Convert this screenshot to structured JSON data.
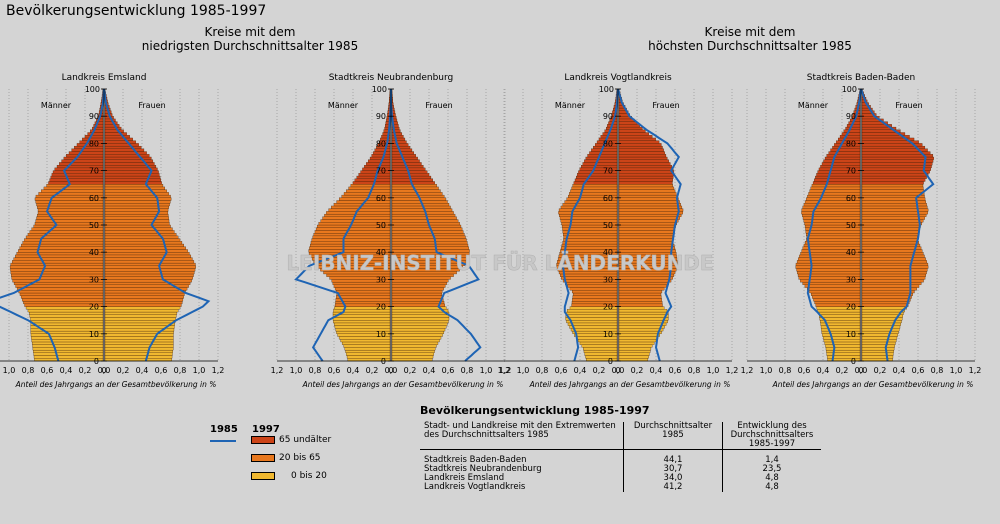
{
  "title": "Bevölkerungsentwicklung 1985-1997",
  "group_left": {
    "line1": "Kreise mit dem",
    "line2": "niedrigsten Durchschnittsalter 1985"
  },
  "group_right": {
    "line1": "Kreise mit dem",
    "line2": "höchsten Durchschnittsalter 1985"
  },
  "watermark": "LEIBNIZ-INSTITUT FÜR LÄNDERKUNDE",
  "legend": {
    "y1985": "1985",
    "y1997": "1997",
    "items": [
      "65 undälter",
      "20 bis  65",
      "0 bis  20"
    ]
  },
  "colors": {
    "old": "#cc4418",
    "mid": "#e8781e",
    "young": "#f0b830",
    "line": "#1e64b4"
  },
  "chart_data": [
    {
      "type": "population-pyramid",
      "title": "Landkreis Emsland",
      "left_label": "Männer",
      "right_label": "Frauen",
      "xlabel": "Anteil des Jahrgangs an der Gesamtbevölkerung in %",
      "x_ticks_left": [
        "1,2",
        "1,0",
        "0,8",
        "0,6",
        "0,4",
        "0,2",
        "0"
      ],
      "x_ticks_right": [
        "0,0",
        "0,2",
        "0,4",
        "0,6",
        "0,8",
        "1,0",
        "1,2"
      ],
      "y_ticks": [
        0,
        10,
        20,
        30,
        40,
        50,
        60,
        70,
        80,
        90,
        100
      ],
      "xlim": [
        0,
        1.2
      ],
      "ylim": [
        0,
        100
      ],
      "profile_1997": {
        "ages": [
          0,
          5,
          10,
          15,
          18,
          20,
          25,
          30,
          35,
          40,
          45,
          50,
          55,
          60,
          65,
          70,
          75,
          80,
          85,
          90,
          95,
          100
        ],
        "men": [
          0.72,
          0.74,
          0.76,
          0.76,
          0.78,
          0.82,
          0.88,
          0.96,
          0.98,
          0.9,
          0.82,
          0.72,
          0.68,
          0.72,
          0.58,
          0.52,
          0.4,
          0.26,
          0.12,
          0.05,
          0.02,
          0
        ],
        "women": [
          0.7,
          0.72,
          0.72,
          0.74,
          0.76,
          0.8,
          0.84,
          0.92,
          0.96,
          0.88,
          0.78,
          0.68,
          0.66,
          0.7,
          0.6,
          0.56,
          0.48,
          0.34,
          0.18,
          0.08,
          0.03,
          0
        ]
      },
      "line_1985": {
        "ages": [
          0,
          5,
          10,
          15,
          20,
          22,
          25,
          30,
          35,
          40,
          45,
          50,
          55,
          60,
          65,
          70,
          75,
          80,
          85,
          90,
          95,
          100
        ],
        "men": [
          0.48,
          0.52,
          0.58,
          0.8,
          1.1,
          1.2,
          0.95,
          0.68,
          0.62,
          0.7,
          0.66,
          0.5,
          0.6,
          0.55,
          0.36,
          0.42,
          0.28,
          0.18,
          0.1,
          0.04,
          0.01,
          0
        ],
        "women": [
          0.44,
          0.48,
          0.56,
          0.76,
          1.04,
          1.1,
          0.86,
          0.62,
          0.58,
          0.66,
          0.62,
          0.5,
          0.58,
          0.56,
          0.44,
          0.5,
          0.38,
          0.26,
          0.14,
          0.06,
          0.02,
          0
        ]
      }
    },
    {
      "type": "population-pyramid",
      "title": "Stadtkreis Neubrandenburg",
      "left_label": "Männer",
      "right_label": "Frauen",
      "xlabel": "Anteil des Jahrgangs an der Gesamtbevölkerung in %",
      "x_ticks_left": [
        "1,2",
        "1,0",
        "0,8",
        "0,6",
        "0,4",
        "0,2",
        "0"
      ],
      "x_ticks_right": [
        "0,0",
        "0,2",
        "0,4",
        "0,6",
        "0,8",
        "1,0",
        "1,2"
      ],
      "y_ticks": [
        0,
        10,
        20,
        30,
        40,
        50,
        60,
        70,
        80,
        90,
        100
      ],
      "xlim": [
        0,
        1.2
      ],
      "ylim": [
        0,
        100
      ],
      "profile_1997": {
        "ages": [
          0,
          5,
          10,
          15,
          18,
          20,
          25,
          30,
          35,
          40,
          45,
          50,
          55,
          60,
          65,
          70,
          75,
          80,
          85,
          90,
          95,
          100
        ],
        "men": [
          0.44,
          0.48,
          0.56,
          0.6,
          0.6,
          0.58,
          0.56,
          0.62,
          0.78,
          0.86,
          0.82,
          0.76,
          0.66,
          0.52,
          0.4,
          0.3,
          0.2,
          0.12,
          0.06,
          0.03,
          0.01,
          0
        ],
        "women": [
          0.42,
          0.46,
          0.54,
          0.6,
          0.6,
          0.56,
          0.52,
          0.6,
          0.76,
          0.82,
          0.78,
          0.72,
          0.64,
          0.56,
          0.46,
          0.36,
          0.26,
          0.16,
          0.08,
          0.04,
          0.01,
          0
        ]
      },
      "line_1985": {
        "ages": [
          0,
          5,
          10,
          15,
          18,
          20,
          25,
          30,
          35,
          40,
          45,
          50,
          55,
          60,
          65,
          70,
          75,
          80,
          85,
          90,
          95,
          100
        ],
        "men": [
          0.72,
          0.82,
          0.74,
          0.66,
          0.5,
          0.48,
          0.56,
          1.0,
          0.86,
          0.5,
          0.5,
          0.42,
          0.36,
          0.24,
          0.18,
          0.14,
          0.08,
          0.04,
          0.02,
          0.01,
          0,
          0
        ],
        "women": [
          0.78,
          0.94,
          0.84,
          0.7,
          0.56,
          0.5,
          0.56,
          0.92,
          0.82,
          0.48,
          0.46,
          0.4,
          0.36,
          0.3,
          0.22,
          0.18,
          0.12,
          0.06,
          0.03,
          0.01,
          0,
          0
        ]
      }
    },
    {
      "type": "population-pyramid",
      "title": "Landkreis Vogtlandkreis",
      "left_label": "Männer",
      "right_label": "Frauen",
      "xlabel": "Anteil des Jahrgangs an der Gesamtbevölkerung in %",
      "x_ticks_left": [
        "1,2",
        "1,0",
        "0,8",
        "0,6",
        "0,4",
        "0,2",
        "0"
      ],
      "x_ticks_right": [
        "0,0",
        "0,2",
        "0,4",
        "0,6",
        "0,8",
        "1,0",
        "1,2"
      ],
      "y_ticks": [
        0,
        10,
        20,
        30,
        40,
        50,
        60,
        70,
        80,
        90,
        100
      ],
      "xlim": [
        0,
        1.2
      ],
      "ylim": [
        0,
        100
      ],
      "profile_1997": {
        "ages": [
          0,
          5,
          10,
          15,
          18,
          20,
          25,
          30,
          35,
          40,
          45,
          50,
          55,
          60,
          65,
          70,
          75,
          80,
          85,
          90,
          95,
          100
        ],
        "men": [
          0.32,
          0.36,
          0.46,
          0.54,
          0.54,
          0.48,
          0.46,
          0.58,
          0.64,
          0.6,
          0.56,
          0.58,
          0.62,
          0.52,
          0.46,
          0.4,
          0.32,
          0.22,
          0.12,
          0.06,
          0.02,
          0
        ],
        "women": [
          0.3,
          0.34,
          0.44,
          0.52,
          0.52,
          0.46,
          0.44,
          0.56,
          0.62,
          0.6,
          0.56,
          0.6,
          0.68,
          0.62,
          0.56,
          0.58,
          0.5,
          0.44,
          0.26,
          0.12,
          0.04,
          0
        ]
      },
      "line_1985": {
        "ages": [
          0,
          5,
          10,
          15,
          18,
          20,
          25,
          30,
          35,
          40,
          45,
          50,
          55,
          60,
          65,
          70,
          75,
          80,
          85,
          90,
          95,
          100
        ],
        "men": [
          0.46,
          0.42,
          0.44,
          0.5,
          0.56,
          0.56,
          0.52,
          0.56,
          0.58,
          0.56,
          0.54,
          0.5,
          0.48,
          0.4,
          0.36,
          0.26,
          0.2,
          0.14,
          0.08,
          0.03,
          0.01,
          0
        ],
        "women": [
          0.44,
          0.4,
          0.42,
          0.48,
          0.52,
          0.56,
          0.5,
          0.54,
          0.56,
          0.56,
          0.58,
          0.6,
          0.64,
          0.62,
          0.66,
          0.56,
          0.64,
          0.52,
          0.3,
          0.12,
          0.04,
          0
        ]
      }
    },
    {
      "type": "population-pyramid",
      "title": "Stadtkreis Baden-Baden",
      "left_label": "Männer",
      "right_label": "Frauen",
      "xlabel": "Anteil des Jahrgangs an der Gesamtbevölkerung in %",
      "x_ticks_left": [
        "1,2",
        "1,0",
        "0,8",
        "0,6",
        "0,4",
        "0,2",
        "0"
      ],
      "x_ticks_right": [
        "0,0",
        "0,2",
        "0,4",
        "0,6",
        "0,8",
        "1,0",
        "1,2"
      ],
      "y_ticks": [
        0,
        10,
        20,
        30,
        40,
        50,
        60,
        70,
        80,
        90,
        100
      ],
      "xlim": [
        0,
        1.2
      ],
      "ylim": [
        0,
        100
      ],
      "profile_1997": {
        "ages": [
          0,
          5,
          10,
          15,
          18,
          20,
          25,
          30,
          35,
          40,
          45,
          50,
          55,
          60,
          65,
          70,
          75,
          80,
          85,
          90,
          95,
          100
        ],
        "men": [
          0.34,
          0.36,
          0.4,
          0.42,
          0.44,
          0.46,
          0.52,
          0.64,
          0.68,
          0.62,
          0.56,
          0.58,
          0.62,
          0.56,
          0.5,
          0.44,
          0.36,
          0.26,
          0.16,
          0.08,
          0.03,
          0
        ],
        "women": [
          0.32,
          0.34,
          0.38,
          0.42,
          0.44,
          0.48,
          0.54,
          0.66,
          0.7,
          0.64,
          0.58,
          0.62,
          0.7,
          0.66,
          0.64,
          0.72,
          0.76,
          0.62,
          0.38,
          0.16,
          0.06,
          0
        ]
      },
      "line_1985": {
        "ages": [
          0,
          5,
          10,
          15,
          18,
          20,
          25,
          30,
          35,
          40,
          45,
          50,
          55,
          60,
          65,
          70,
          75,
          80,
          85,
          90,
          95,
          100
        ],
        "men": [
          0.3,
          0.28,
          0.32,
          0.38,
          0.46,
          0.52,
          0.56,
          0.54,
          0.52,
          0.54,
          0.56,
          0.52,
          0.5,
          0.42,
          0.36,
          0.32,
          0.28,
          0.2,
          0.12,
          0.05,
          0.02,
          0
        ],
        "women": [
          0.28,
          0.26,
          0.3,
          0.36,
          0.42,
          0.48,
          0.52,
          0.52,
          0.52,
          0.56,
          0.6,
          0.62,
          0.6,
          0.58,
          0.76,
          0.66,
          0.68,
          0.54,
          0.34,
          0.14,
          0.05,
          0
        ]
      }
    }
  ],
  "table": {
    "title": "Bevölkerungsentwicklung 1985-1997",
    "headers": [
      "Stadt- und Landkreise mit den Extremwerten des Durchschnittsalters 1985",
      "Durchschnittsalter 1985",
      "Entwicklung des Durchschnittsalters 1985-1997"
    ],
    "rows": [
      [
        "Stadtkreis Baden-Baden",
        "44,1",
        "1,4"
      ],
      [
        "Stadtkreis Neubrandenburg",
        "30,7",
        "23,5"
      ],
      [
        "Landkreis Emsland",
        "34,0",
        "4,8"
      ],
      [
        "Landkreis Vogtlandkreis",
        "41,2",
        "4,8"
      ]
    ]
  }
}
